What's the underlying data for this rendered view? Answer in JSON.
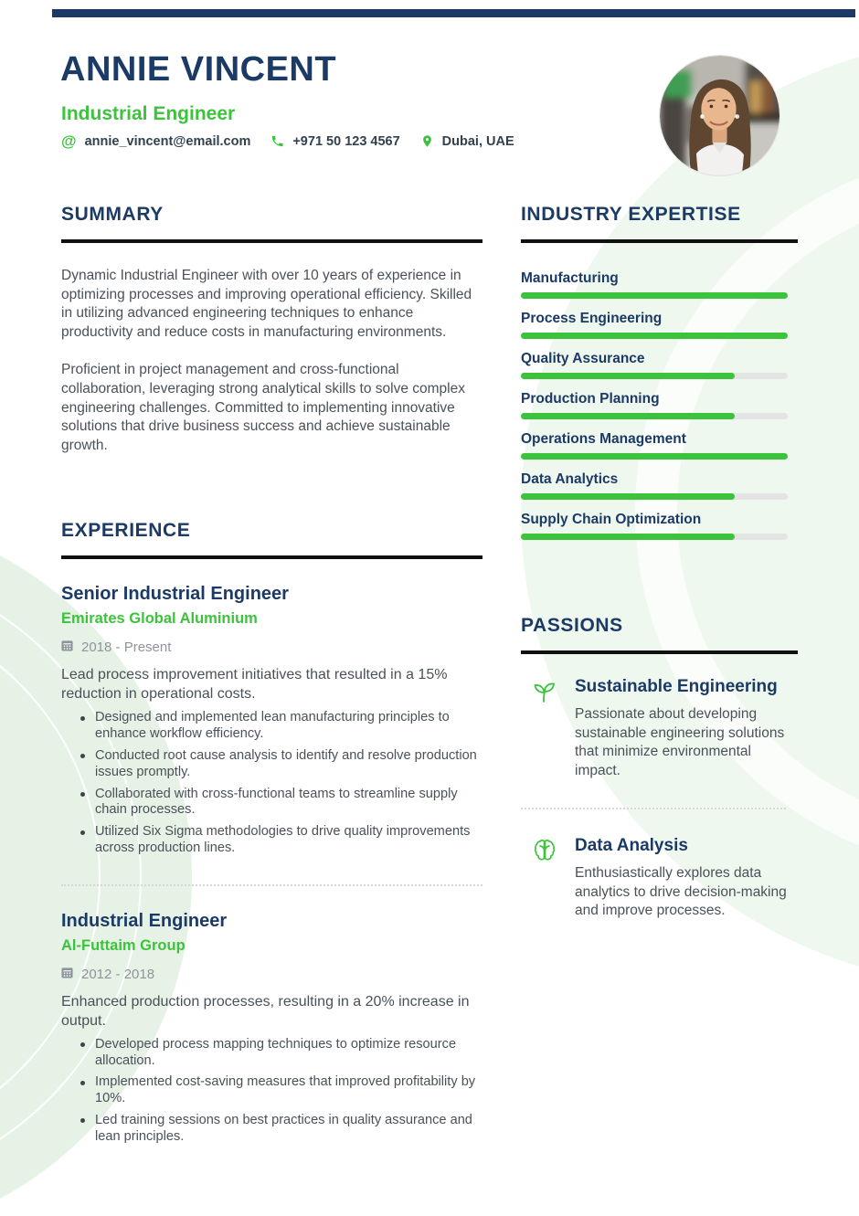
{
  "colors": {
    "navy": "#1b3a66",
    "accent_green": "#3bc43b",
    "body_text": "#4a5158",
    "muted_gray": "#8e949b",
    "bar_track": "#e4e4e4",
    "heading_rule": "#101010"
  },
  "header": {
    "name": "ANNIE VINCENT",
    "title": "Industrial Engineer",
    "contact": {
      "email": "annie_vincent@email.com",
      "phone": "+971 50 123 4567",
      "location": "Dubai, UAE"
    },
    "icons": [
      "at-icon",
      "phone-icon",
      "location-pin-icon"
    ]
  },
  "summary": {
    "heading": "SUMMARY",
    "paragraphs": [
      "Dynamic Industrial Engineer with over 10 years of experience in optimizing processes and improving operational efficiency. Skilled in utilizing advanced engineering techniques to enhance productivity and reduce costs in manufacturing environments.",
      "Proficient in project management and cross-functional collaboration, leveraging strong analytical skills to solve complex engineering challenges. Committed to implementing innovative solutions that drive business success and achieve sustainable growth."
    ]
  },
  "expertise": {
    "heading": "INDUSTRY EXPERTISE",
    "skills": [
      {
        "label": "Manufacturing",
        "percent": 100
      },
      {
        "label": "Process Engineering",
        "percent": 100
      },
      {
        "label": "Quality Assurance",
        "percent": 80
      },
      {
        "label": "Production Planning",
        "percent": 80
      },
      {
        "label": "Operations Management",
        "percent": 100
      },
      {
        "label": "Data Analytics",
        "percent": 80
      },
      {
        "label": "Supply Chain Optimization",
        "percent": 80
      }
    ]
  },
  "experience": {
    "heading": "EXPERIENCE",
    "jobs": [
      {
        "title": "Senior Industrial Engineer",
        "company": "Emirates Global Aluminium",
        "dates": "2018 - Present",
        "summary": "Lead process improvement initiatives that resulted in a 15% reduction in operational costs.",
        "bullets": [
          "Designed and implemented lean manufacturing principles to enhance workflow efficiency.",
          "Conducted root cause analysis to identify and resolve production issues promptly.",
          "Collaborated with cross-functional teams to streamline supply chain processes.",
          "Utilized Six Sigma methodologies to drive quality improvements across production lines."
        ]
      },
      {
        "title": "Industrial Engineer",
        "company": "Al-Futtaim Group",
        "dates": "2012 - 2018",
        "summary": "Enhanced production processes, resulting in a 20% increase in output.",
        "bullets": [
          "Developed process mapping techniques to optimize resource allocation.",
          "Implemented cost-saving measures that improved profitability by 10%.",
          "Led training sessions on best practices in quality assurance and lean principles."
        ]
      }
    ]
  },
  "passions": {
    "heading": "PASSIONS",
    "items": [
      {
        "icon": "seedling-icon",
        "title": "Sustainable Engineering",
        "description": "Passionate about developing sustainable engineering solutions that minimize environmental impact."
      },
      {
        "icon": "brain-icon",
        "title": "Data Analysis",
        "description": "Enthusiastically explores data analytics to drive decision-making and improve processes."
      }
    ]
  }
}
